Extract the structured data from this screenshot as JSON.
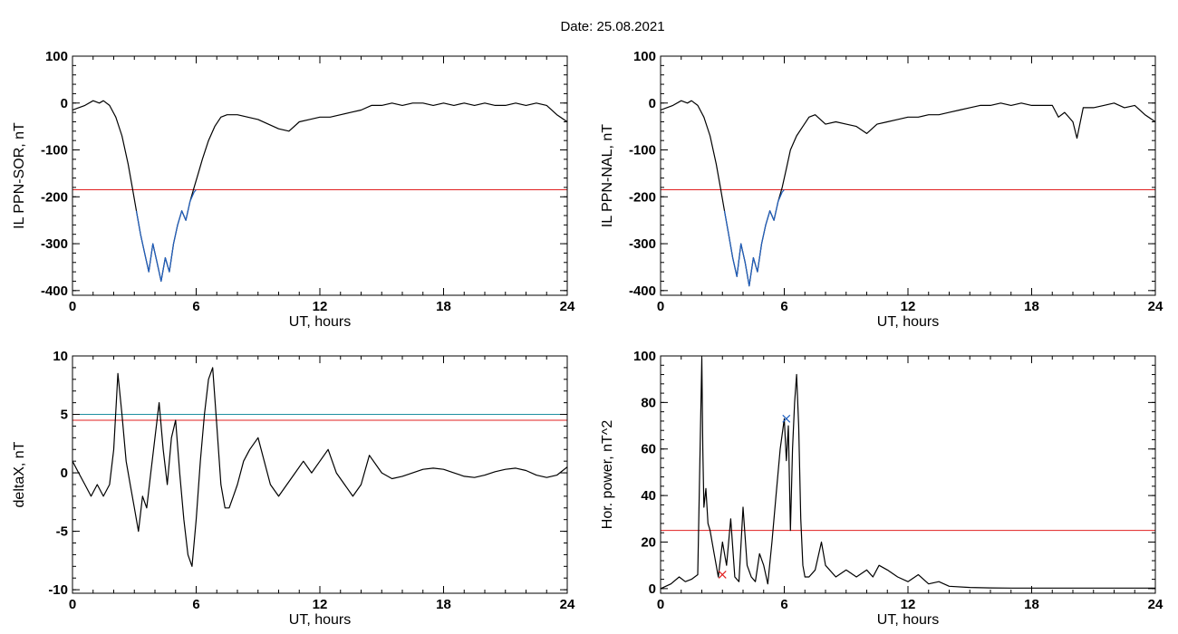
{
  "figure_title": "Date:  25.08.2021",
  "chart_data": [
    {
      "id": "il-sor",
      "type": "line",
      "title": "",
      "xlabel": "UT, hours",
      "ylabel": "IL PPN-SOR, nT",
      "xlim": [
        0,
        24
      ],
      "ylim": [
        -410,
        100
      ],
      "xticks": [
        0,
        6,
        12,
        18,
        24
      ],
      "yticks": [
        -400,
        -300,
        -200,
        -100,
        0,
        100
      ],
      "grid": false,
      "hlines": [
        {
          "y": -185,
          "color": "#e02020"
        }
      ],
      "series": [
        {
          "color": "#000000",
          "x": [
            0,
            0.3,
            0.6,
            1.0,
            1.3,
            1.5,
            1.8,
            2.1,
            2.4,
            2.7,
            2.9,
            3.1,
            3.3,
            3.5,
            3.7,
            3.9,
            4.1,
            4.3,
            4.5,
            4.7,
            4.9,
            5.1,
            5.3,
            5.5,
            5.7,
            5.9,
            6.1,
            6.3,
            6.6,
            6.9,
            7.2,
            7.5,
            8,
            8.5,
            9,
            9.5,
            10,
            10.5,
            11,
            11.5,
            12,
            12.5,
            13,
            13.5,
            14,
            14.5,
            15,
            15.5,
            16,
            16.5,
            17,
            17.5,
            18,
            18.5,
            19,
            19.5,
            20,
            20.5,
            21,
            21.5,
            22,
            22.5,
            23,
            23.5,
            24
          ],
          "y": [
            -15,
            -10,
            -5,
            5,
            0,
            5,
            -5,
            -30,
            -70,
            -130,
            -180,
            -230,
            -280,
            -320,
            -360,
            -300,
            -340,
            -380,
            -330,
            -360,
            -300,
            -260,
            -230,
            -250,
            -210,
            -180,
            -150,
            -120,
            -80,
            -50,
            -30,
            -25,
            -25,
            -30,
            -35,
            -45,
            -55,
            -60,
            -40,
            -35,
            -30,
            -30,
            -25,
            -20,
            -15,
            -5,
            -5,
            0,
            -5,
            0,
            0,
            -5,
            0,
            -5,
            0,
            -5,
            0,
            -5,
            -5,
            0,
            -5,
            0,
            -5,
            -25,
            -40
          ]
        },
        {
          "color": "#1f5fbf",
          "x": [
            3.1,
            3.3,
            3.5,
            3.7,
            3.9,
            4.1,
            4.3,
            4.5,
            4.7,
            4.9,
            5.1,
            5.3,
            5.5,
            5.7,
            5.9,
            6.0
          ],
          "y": [
            -230,
            -280,
            -320,
            -360,
            -300,
            -340,
            -380,
            -330,
            -360,
            -300,
            -260,
            -230,
            -250,
            -210,
            -190,
            -185
          ]
        }
      ]
    },
    {
      "id": "il-nal",
      "type": "line",
      "title": "",
      "xlabel": "UT, hours",
      "ylabel": "IL PPN-NAL, nT",
      "xlim": [
        0,
        24
      ],
      "ylim": [
        -410,
        100
      ],
      "xticks": [
        0,
        6,
        12,
        18,
        24
      ],
      "yticks": [
        -400,
        -300,
        -200,
        -100,
        0,
        100
      ],
      "grid": false,
      "hlines": [
        {
          "y": -185,
          "color": "#e02020"
        }
      ],
      "series": [
        {
          "color": "#000000",
          "x": [
            0,
            0.3,
            0.6,
            1.0,
            1.3,
            1.5,
            1.8,
            2.1,
            2.4,
            2.7,
            2.9,
            3.1,
            3.3,
            3.5,
            3.7,
            3.9,
            4.1,
            4.3,
            4.5,
            4.7,
            4.9,
            5.1,
            5.3,
            5.5,
            5.7,
            5.9,
            6.1,
            6.3,
            6.6,
            6.9,
            7.2,
            7.5,
            8,
            8.5,
            9,
            9.5,
            10,
            10.5,
            11,
            11.5,
            12,
            12.5,
            13,
            13.5,
            14,
            14.5,
            15,
            15.5,
            16,
            16.5,
            17,
            17.5,
            18,
            18.5,
            19,
            19.3,
            19.6,
            20,
            20.2,
            20.5,
            21,
            21.5,
            22,
            22.5,
            23,
            23.5,
            24
          ],
          "y": [
            -15,
            -10,
            -5,
            5,
            0,
            5,
            -5,
            -30,
            -70,
            -130,
            -180,
            -230,
            -280,
            -330,
            -370,
            -300,
            -340,
            -390,
            -330,
            -360,
            -300,
            -260,
            -230,
            -250,
            -210,
            -180,
            -140,
            -100,
            -70,
            -50,
            -30,
            -25,
            -45,
            -40,
            -45,
            -50,
            -65,
            -45,
            -40,
            -35,
            -30,
            -30,
            -25,
            -25,
            -20,
            -15,
            -10,
            -5,
            -5,
            0,
            -5,
            0,
            -5,
            -5,
            -5,
            -30,
            -20,
            -40,
            -75,
            -10,
            -10,
            -5,
            0,
            -10,
            -5,
            -25,
            -40
          ]
        },
        {
          "color": "#1f5fbf",
          "x": [
            3.1,
            3.3,
            3.5,
            3.7,
            3.9,
            4.1,
            4.3,
            4.5,
            4.7,
            4.9,
            5.1,
            5.3,
            5.5,
            5.7,
            5.9,
            6.0
          ],
          "y": [
            -230,
            -280,
            -330,
            -370,
            -300,
            -340,
            -390,
            -330,
            -360,
            -300,
            -260,
            -230,
            -250,
            -210,
            -190,
            -185
          ]
        }
      ]
    },
    {
      "id": "delta-x",
      "type": "line",
      "title": "",
      "xlabel": "UT, hours",
      "ylabel": "deltaX, nT",
      "xlim": [
        0,
        24
      ],
      "ylim": [
        -10.3,
        10
      ],
      "xticks": [
        0,
        6,
        12,
        18,
        24
      ],
      "yticks": [
        -10,
        -5,
        0,
        5,
        10
      ],
      "grid": false,
      "hlines": [
        {
          "y": 5,
          "color": "#1f8fa0"
        },
        {
          "y": 4.5,
          "color": "#e02020"
        }
      ],
      "series": [
        {
          "color": "#000000",
          "x": [
            0,
            0.3,
            0.6,
            0.9,
            1.2,
            1.5,
            1.8,
            2.0,
            2.2,
            2.4,
            2.6,
            2.8,
            3.0,
            3.2,
            3.4,
            3.6,
            3.8,
            4.0,
            4.2,
            4.4,
            4.6,
            4.8,
            5.0,
            5.2,
            5.4,
            5.6,
            5.8,
            6.0,
            6.2,
            6.4,
            6.6,
            6.8,
            7.0,
            7.2,
            7.4,
            7.6,
            7.8,
            8.0,
            8.3,
            8.6,
            9.0,
            9.3,
            9.6,
            10.0,
            10.4,
            10.8,
            11.2,
            11.6,
            12.0,
            12.4,
            12.8,
            13.2,
            13.6,
            14.0,
            14.4,
            15.0,
            15.5,
            16.0,
            16.5,
            17.0,
            17.5,
            18.0,
            18.5,
            19.0,
            19.5,
            20.0,
            20.5,
            21.0,
            21.5,
            22.0,
            22.5,
            23.0,
            23.5,
            24.0
          ],
          "y": [
            1,
            0,
            -1,
            -2,
            -1,
            -2,
            -1,
            2,
            8.5,
            5,
            1,
            -1,
            -3,
            -5,
            -2,
            -3,
            0,
            3,
            6,
            2,
            -1,
            3,
            4.5,
            0,
            -4,
            -7,
            -8,
            -4,
            1,
            5,
            8,
            9,
            4,
            -1,
            -3,
            -3,
            -2,
            -1,
            1,
            2,
            3,
            1,
            -1,
            -2,
            -1,
            0,
            1,
            0,
            1,
            2,
            0,
            -1,
            -2,
            -1,
            1.5,
            0,
            -0.5,
            -0.3,
            0,
            0.3,
            0.4,
            0.3,
            0,
            -0.3,
            -0.4,
            -0.2,
            0.1,
            0.3,
            0.4,
            0.2,
            -0.2,
            -0.4,
            -0.2,
            0.5
          ]
        }
      ]
    },
    {
      "id": "hor-power",
      "type": "line",
      "title": "",
      "xlabel": "UT, hours",
      "ylabel": "Hor. power, nT^2",
      "xlim": [
        0,
        24
      ],
      "ylim": [
        -2,
        100
      ],
      "xticks": [
        0,
        6,
        12,
        18,
        24
      ],
      "yticks": [
        0,
        20,
        40,
        60,
        80,
        100
      ],
      "grid": false,
      "hlines": [
        {
          "y": 25,
          "color": "#e02020"
        }
      ],
      "markers": [
        {
          "x": 6.1,
          "y": 73,
          "color": "#1f5fbf",
          "symbol": "x"
        },
        {
          "x": 3.0,
          "y": 6,
          "color": "#e02020",
          "symbol": "x"
        }
      ],
      "series": [
        {
          "color": "#000000",
          "x": [
            0,
            0.5,
            0.9,
            1.2,
            1.5,
            1.8,
            2.0,
            2.05,
            2.1,
            2.2,
            2.3,
            2.4,
            2.6,
            2.8,
            3.0,
            3.2,
            3.4,
            3.6,
            3.8,
            4.0,
            4.2,
            4.4,
            4.6,
            4.8,
            5.0,
            5.2,
            5.4,
            5.6,
            5.8,
            6.0,
            6.1,
            6.2,
            6.3,
            6.4,
            6.5,
            6.6,
            6.7,
            6.8,
            6.9,
            7.0,
            7.2,
            7.5,
            7.8,
            8.0,
            8.5,
            9.0,
            9.5,
            10.0,
            10.3,
            10.6,
            11,
            11.5,
            12,
            12.5,
            13,
            13.5,
            14,
            15,
            16,
            17,
            18,
            19,
            20,
            21,
            22,
            23,
            24
          ],
          "y": [
            0,
            2,
            5,
            3,
            4,
            6,
            99,
            60,
            35,
            43,
            28,
            25,
            15,
            5,
            20,
            10,
            30,
            5,
            3,
            35,
            10,
            5,
            3,
            15,
            10,
            2,
            20,
            40,
            60,
            73,
            55,
            70,
            25,
            60,
            80,
            92,
            70,
            30,
            10,
            5,
            5,
            8,
            20,
            10,
            5,
            8,
            5,
            8,
            5,
            10,
            8,
            5,
            3,
            6,
            2,
            3,
            1,
            0.5,
            0.3,
            0.2,
            0.2,
            0.2,
            0.2,
            0.2,
            0.2,
            0.2,
            0.2
          ]
        }
      ]
    }
  ]
}
